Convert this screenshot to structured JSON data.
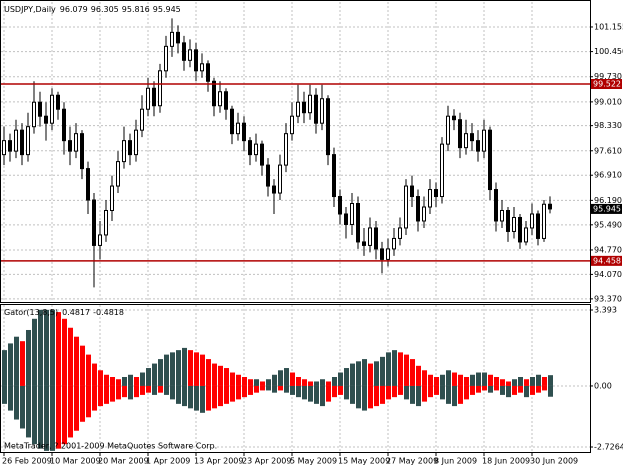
{
  "chart_data": [
    {
      "type": "candlestick",
      "title": "USDJPY,Daily",
      "categories": [
        "26 Feb 2009",
        null,
        null,
        null,
        null,
        null,
        null,
        null,
        "10 Mar 2009",
        null,
        null,
        null,
        null,
        null,
        null,
        null,
        "20 Mar 2009",
        null,
        null,
        null,
        null,
        null,
        null,
        null,
        "1 Apr 2009",
        null,
        null,
        null,
        null,
        null,
        null,
        null,
        "13 Apr 2009",
        null,
        null,
        null,
        null,
        null,
        null,
        null,
        "23 Apr 2009",
        null,
        null,
        null,
        null,
        null,
        null,
        null,
        "5 May 2009",
        null,
        null,
        null,
        null,
        null,
        null,
        null,
        "15 May 2009",
        null,
        null,
        null,
        null,
        null,
        null,
        null,
        "27 May 2009",
        null,
        null,
        null,
        null,
        null,
        null,
        null,
        "8 Jun 2009",
        null,
        null,
        null,
        null,
        null,
        null,
        null,
        "18 Jun 2009",
        null,
        null,
        null,
        null,
        null,
        null,
        null,
        "30 Jun 2009",
        null,
        null,
        null
      ],
      "open": [
        97.5,
        97.9,
        97.6,
        98.2,
        97.5,
        98.3,
        99.0,
        98.6,
        98.4,
        99.2,
        98.8,
        97.9,
        97.6,
        98.1,
        97.1,
        96.2,
        94.9,
        95.2,
        95.9,
        96.6,
        97.3,
        97.9,
        97.5,
        98.2,
        98.8,
        99.4,
        98.9,
        99.9,
        100.6,
        101.0,
        100.7,
        100.2,
        100.5,
        99.9,
        100.1,
        99.6,
        98.9,
        99.3,
        98.8,
        98.1,
        98.4,
        97.9,
        97.5,
        97.8,
        97.2,
        96.6,
        96.4,
        97.2,
        98.1,
        98.6,
        99.0,
        98.7,
        99.2,
        98.4,
        99.1,
        97.5,
        96.3,
        95.8,
        95.5,
        96.1,
        95.0,
        94.9,
        95.4,
        94.8,
        94.5,
        94.8,
        95.1,
        95.4,
        96.6,
        96.3,
        95.6,
        96.0,
        96.5,
        96.3,
        97.8,
        98.6,
        98.5,
        97.7,
        98.1,
        97.9,
        97.6,
        98.2,
        96.5,
        95.6,
        95.9,
        95.3,
        95.7,
        95.0,
        95.4,
        95.8,
        95.1,
        96.079
      ],
      "high": [
        98.3,
        98.1,
        98.5,
        98.4,
        98.7,
        99.6,
        99.3,
        99.0,
        99.4,
        99.3,
        99.0,
        98.3,
        98.4,
        98.2,
        97.3,
        96.4,
        95.6,
        96.2,
        96.9,
        97.6,
        98.3,
        98.1,
        98.5,
        99.2,
        99.7,
        99.6,
        100.1,
        100.9,
        101.4,
        101.2,
        100.9,
        100.8,
        100.7,
        100.4,
        100.2,
        99.7,
        99.6,
        99.4,
        98.9,
        98.7,
        98.6,
        98.0,
        98.1,
        97.9,
        97.4,
        96.8,
        97.5,
        98.4,
        99.0,
        99.5,
        99.3,
        99.5,
        99.4,
        99.5,
        99.2,
        97.7,
        96.5,
        96.0,
        96.4,
        96.3,
        95.4,
        95.7,
        95.6,
        95.0,
        95.1,
        95.4,
        95.7,
        96.8,
        96.9,
        96.5,
        96.3,
        96.8,
        96.7,
        98.0,
        98.9,
        98.8,
        98.7,
        98.5,
        98.4,
        98.2,
        98.5,
        98.3,
        96.7,
        96.2,
        96.0,
        96.0,
        95.8,
        95.6,
        96.1,
        95.9,
        96.2,
        96.305
      ],
      "low": [
        97.2,
        97.3,
        97.4,
        97.2,
        97.3,
        98.1,
        98.3,
        97.9,
        98.2,
        98.5,
        97.5,
        97.2,
        97.4,
        96.8,
        95.8,
        93.7,
        94.5,
        95.0,
        95.6,
        96.4,
        97.1,
        97.2,
        97.3,
        98.0,
        98.6,
        98.6,
        98.7,
        99.7,
        100.3,
        100.4,
        99.9,
        100.0,
        99.6,
        99.7,
        99.3,
        98.6,
        98.7,
        98.5,
        97.8,
        97.9,
        97.6,
        97.2,
        97.3,
        96.9,
        96.3,
        95.8,
        96.2,
        97.0,
        97.9,
        98.4,
        98.4,
        98.5,
        98.1,
        98.2,
        97.2,
        96.0,
        95.5,
        95.1,
        95.2,
        94.8,
        94.6,
        94.7,
        94.5,
        94.1,
        94.3,
        94.6,
        94.9,
        95.2,
        96.0,
        95.3,
        95.4,
        95.8,
        96.0,
        96.1,
        97.6,
        98.2,
        97.4,
        97.5,
        97.6,
        97.3,
        97.4,
        96.2,
        95.3,
        95.4,
        95.0,
        95.1,
        94.8,
        94.9,
        95.2,
        94.9,
        95.0,
        95.816
      ],
      "close": [
        97.9,
        97.6,
        98.2,
        97.5,
        98.3,
        99.0,
        98.6,
        98.4,
        99.2,
        98.8,
        97.9,
        97.6,
        98.1,
        97.1,
        96.2,
        94.9,
        95.2,
        95.9,
        96.6,
        97.3,
        97.9,
        97.5,
        98.2,
        98.8,
        99.4,
        98.9,
        99.9,
        100.6,
        101.0,
        100.7,
        100.2,
        100.5,
        99.9,
        100.1,
        99.6,
        98.9,
        99.3,
        98.8,
        98.1,
        98.4,
        97.9,
        97.5,
        97.8,
        97.2,
        96.6,
        96.4,
        97.2,
        98.1,
        98.6,
        99.0,
        98.7,
        99.2,
        98.4,
        99.1,
        97.5,
        96.3,
        95.8,
        95.5,
        96.1,
        95.0,
        94.9,
        95.4,
        94.8,
        94.5,
        94.8,
        95.1,
        95.4,
        96.6,
        96.3,
        95.6,
        96.0,
        96.5,
        96.3,
        97.8,
        98.6,
        98.5,
        97.7,
        98.1,
        97.9,
        97.6,
        98.2,
        96.5,
        95.6,
        95.9,
        95.3,
        95.7,
        95.0,
        95.4,
        95.8,
        95.1,
        96.079,
        95.945
      ],
      "ylim": [
        93.28,
        101.87
      ],
      "yticks": [
        101.155,
        {
          "value": 100.45,
          "label": "100.450"
        },
        {
          "value": 99.73,
          "label": "99.730"
        },
        {
          "value": 99.01,
          "label": "99.010"
        },
        {
          "value": 98.33,
          "label": "98.330"
        },
        {
          "value": 97.61,
          "label": "97.610"
        },
        {
          "value": 96.91,
          "label": "96.910"
        },
        {
          "value": 96.19,
          "label": "96.190"
        },
        {
          "value": 95.49,
          "label": "95.490"
        },
        {
          "value": 94.77,
          "label": "94.770"
        },
        {
          "value": 94.07,
          "label": "94.070"
        },
        {
          "value": 93.37,
          "label": "93.370"
        }
      ],
      "hlines": [
        99.522,
        94.458
      ],
      "hline_color": "#b00000",
      "up_color": "#ffffff",
      "down_color": "#000000",
      "grid": true
    },
    {
      "type": "gator",
      "title": "Gator(13,8,5)",
      "upper": [
        1.6,
        1.9,
        2.2,
        2.0,
        2.5,
        3.0,
        3.4,
        3.4,
        3.4,
        3.3,
        3.0,
        2.6,
        2.2,
        1.8,
        1.4,
        1.0,
        0.7,
        0.5,
        0.4,
        0.3,
        0.4,
        0.5,
        0.4,
        0.6,
        0.8,
        1.0,
        1.2,
        1.4,
        1.5,
        1.6,
        1.7,
        1.6,
        1.5,
        1.4,
        1.2,
        1.0,
        0.9,
        0.8,
        0.6,
        0.5,
        0.4,
        0.3,
        0.3,
        0.2,
        0.3,
        0.5,
        0.7,
        0.8,
        0.6,
        0.4,
        0.3,
        0.2,
        0.2,
        0.3,
        0.2,
        0.4,
        0.6,
        0.8,
        1.0,
        1.1,
        1.2,
        1.0,
        1.1,
        1.3,
        1.5,
        1.6,
        1.5,
        1.4,
        1.2,
        0.9,
        0.7,
        0.5,
        0.4,
        0.5,
        0.7,
        0.6,
        0.5,
        0.4,
        0.5,
        0.6,
        0.6,
        0.5,
        0.4,
        0.3,
        0.2,
        0.3,
        0.4,
        0.3,
        0.4,
        0.5,
        0.4,
        0.4817
      ],
      "lower": [
        -0.8,
        -1.1,
        -1.5,
        -1.9,
        -2.3,
        -2.6,
        -2.8,
        -2.9,
        -2.9,
        -2.8,
        -2.6,
        -2.3,
        -2.0,
        -1.6,
        -1.4,
        -1.1,
        -0.9,
        -0.8,
        -0.7,
        -0.6,
        -0.5,
        -0.6,
        -0.5,
        -0.4,
        -0.3,
        -0.4,
        -0.3,
        -0.4,
        -0.6,
        -0.8,
        -0.9,
        -1.0,
        -1.1,
        -1.2,
        -1.1,
        -1.0,
        -0.9,
        -0.8,
        -0.7,
        -0.6,
        -0.5,
        -0.4,
        -0.3,
        -0.2,
        -0.2,
        -0.3,
        -0.2,
        -0.3,
        -0.4,
        -0.5,
        -0.6,
        -0.7,
        -0.8,
        -0.9,
        -0.7,
        -0.5,
        -0.4,
        -0.6,
        -0.8,
        -1.0,
        -1.1,
        -1.0,
        -0.9,
        -0.8,
        -0.6,
        -0.5,
        -0.4,
        -0.6,
        -0.8,
        -0.9,
        -0.7,
        -0.5,
        -0.4,
        -0.6,
        -0.8,
        -0.9,
        -0.8,
        -0.6,
        -0.4,
        -0.3,
        -0.2,
        -0.3,
        -0.2,
        -0.4,
        -0.5,
        -0.4,
        -0.3,
        -0.5,
        -0.4,
        -0.3,
        -0.2,
        -0.4818
      ],
      "ylim": [
        -2.95,
        3.616
      ],
      "yticks": [
        3.393,
        {
          "value": 0,
          "label": "0.00"
        },
        -2.7264
      ],
      "up_color": "#2f4f4f",
      "down_color": "#ff0000",
      "grid": true
    }
  ],
  "footer": "MetaTrader, ? 2001-2009 MetaQuotes Software Corp."
}
